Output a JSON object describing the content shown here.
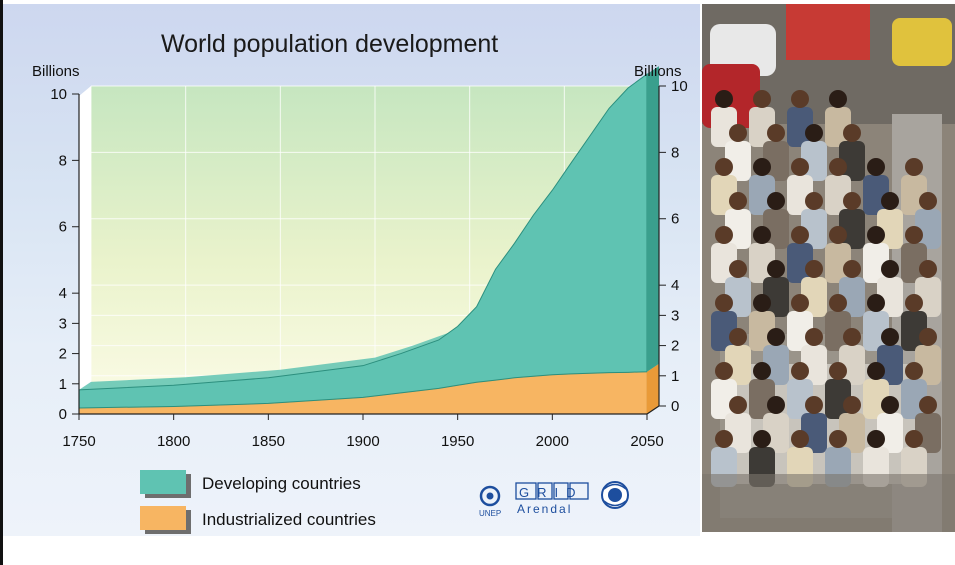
{
  "chart_data": {
    "type": "area",
    "title": "World population development",
    "ylabel_left": "Billions",
    "ylabel_right": "Billions",
    "x_ticks": [
      "1750",
      "1800",
      "1850",
      "1900",
      "1950",
      "2000",
      "2050"
    ],
    "y_ticks_left": [
      "0",
      "1",
      "2",
      "3",
      "4",
      "6",
      "8",
      "10"
    ],
    "y_ticks_right": [
      "0",
      "1",
      "2",
      "3",
      "4",
      "6",
      "8",
      "10"
    ],
    "xlim": [
      1750,
      2050
    ],
    "ylim": [
      0,
      10
    ],
    "stacked": true,
    "x": [
      1750,
      1800,
      1850,
      1900,
      1920,
      1940,
      1950,
      1960,
      1970,
      1980,
      1990,
      2000,
      2010,
      2020,
      2030,
      2040,
      2050
    ],
    "series": [
      {
        "name": "Industrialized countries",
        "color": "#f7b562",
        "values": [
          0.2,
          0.25,
          0.35,
          0.55,
          0.7,
          0.85,
          0.95,
          1.05,
          1.12,
          1.2,
          1.25,
          1.3,
          1.33,
          1.35,
          1.37,
          1.38,
          1.4
        ]
      },
      {
        "name": "Developing countries",
        "color": "#5fc3b2",
        "values": [
          0.6,
          0.7,
          0.85,
          1.05,
          1.3,
          1.6,
          1.95,
          2.5,
          3.6,
          4.3,
          5.1,
          5.8,
          6.6,
          7.4,
          8.2,
          8.8,
          9.2
        ]
      }
    ],
    "legend": [
      {
        "label": "Developing countries",
        "color": "#5fc3b2"
      },
      {
        "label": "Industrialized countries",
        "color": "#f7b562"
      }
    ],
    "legend_position": "bottom",
    "grid": true
  },
  "logos": {
    "unep": "UNEP",
    "grid": "GRID",
    "arendal": "Arendal"
  },
  "photo": {
    "icon": "crowded-bus-photo"
  }
}
